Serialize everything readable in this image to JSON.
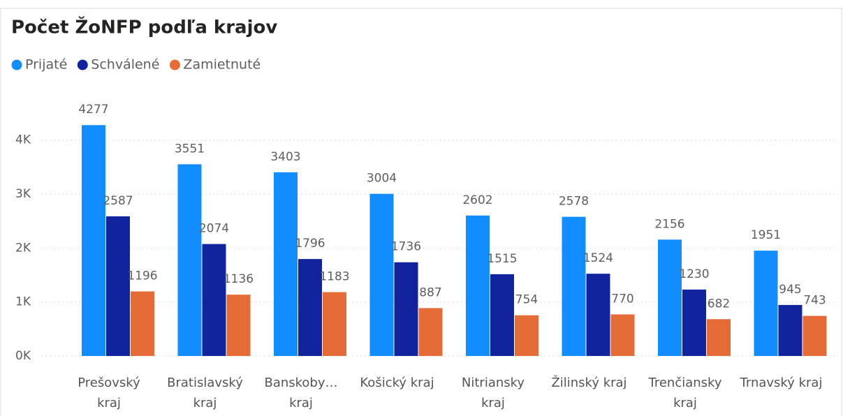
{
  "chart_data": {
    "type": "bar",
    "title": "Počet ŽoNFP podľa krajov",
    "categories": [
      "Prešovský kraj",
      "Bratislavský kraj",
      "Banskoby… kraj",
      "Košický kraj",
      "Nitriansky kraj",
      "Žilinský kraj",
      "Trenčiansky kraj",
      "Trnavský kraj"
    ],
    "series": [
      {
        "name": "Prijaté",
        "color": "#118DFF",
        "values": [
          4277,
          3551,
          3403,
          3004,
          2602,
          2578,
          2156,
          1951
        ]
      },
      {
        "name": "Schválené",
        "color": "#12239E",
        "values": [
          2587,
          2074,
          1796,
          1736,
          1515,
          1524,
          1230,
          945
        ]
      },
      {
        "name": "Zamietnuté",
        "color": "#E66C37",
        "values": [
          1196,
          1136,
          1183,
          887,
          754,
          770,
          682,
          743
        ]
      }
    ],
    "ylim": [
      0,
      4500
    ],
    "yticks": [
      {
        "value": 0,
        "label": "0K"
      },
      {
        "value": 1000,
        "label": "1K"
      },
      {
        "value": 2000,
        "label": "2K"
      },
      {
        "value": 3000,
        "label": "3K"
      },
      {
        "value": 4000,
        "label": "4K"
      }
    ],
    "grid": true,
    "legend": "top-left"
  }
}
